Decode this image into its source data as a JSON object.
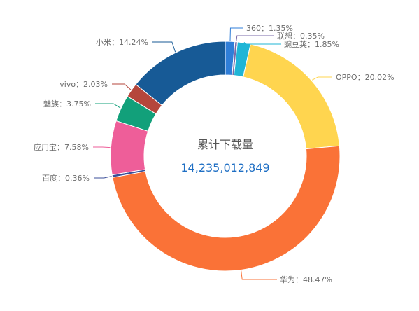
{
  "chart_data": {
    "type": "pie",
    "style": "donut",
    "center_title": "累计下载量",
    "center_value": "14,235,012,849",
    "slices": [
      {
        "name": "360",
        "value": 1.35,
        "label": "360：1.35%",
        "color": "#2f7ed8"
      },
      {
        "name": "联想",
        "value": 0.35,
        "label": "联想：0.35%",
        "color": "#7a6aa8"
      },
      {
        "name": "豌豆荚",
        "value": 1.85,
        "label": "豌豆荚：1.85%",
        "color": "#1fb5d6"
      },
      {
        "name": "OPPO",
        "value": 20.02,
        "label": "OPPO：20.02%",
        "color": "#ffd54f"
      },
      {
        "name": "华为",
        "value": 48.47,
        "label": "华为：48.47%",
        "color": "#fa7237"
      },
      {
        "name": "百度",
        "value": 0.36,
        "label": "百度：0.36%",
        "color": "#3b4f99"
      },
      {
        "name": "应用宝",
        "value": 7.58,
        "label": "应用宝：7.58%",
        "color": "#ee5e99"
      },
      {
        "name": "魅族",
        "value": 3.75,
        "label": "魅族：3.75%",
        "color": "#12a07a"
      },
      {
        "name": "vivo",
        "value": 2.03,
        "label": "vivo：2.03%",
        "color": "#b5463b"
      },
      {
        "name": "小米",
        "value": 14.24,
        "label": "小米：14.24%",
        "color": "#175a96"
      }
    ]
  }
}
